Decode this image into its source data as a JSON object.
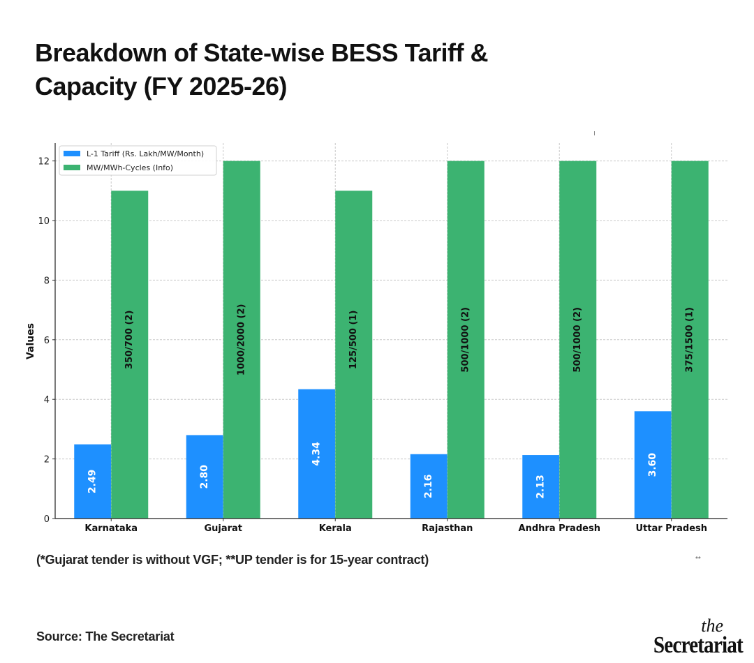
{
  "header": {
    "title": "Breakdown of State-wise BESS Tariff & Capacity (FY 2025-26)"
  },
  "footnote": "(*Gujarat tender is without VGF; **UP tender is for 15-year contract)",
  "stray_mark": "**",
  "source": "Source: The Secretariat",
  "logo": {
    "the": "the",
    "name": "Secretariat"
  },
  "colors": {
    "tariff": "#1E90FF",
    "capacity": "#3CB371",
    "grid": "#cccccc",
    "axis": "#333333"
  },
  "chart_data": {
    "type": "bar",
    "title": "",
    "xlabel": "",
    "ylabel": "Values",
    "ylim": [
      0,
      12.6
    ],
    "yticks": [
      0,
      2,
      4,
      6,
      8,
      10,
      12
    ],
    "grid": true,
    "legend_position": "top-left",
    "categories": [
      "Karnataka",
      "Gujarat",
      "Kerala",
      "Rajasthan",
      "Andhra Pradesh",
      "Uttar Pradesh"
    ],
    "series": [
      {
        "name": "L-1 Tariff (Rs. Lakh/MW/Month)",
        "color": "#1E90FF",
        "values": [
          2.49,
          2.8,
          4.34,
          2.16,
          2.13,
          3.6
        ],
        "labels": [
          "2.49",
          "2.80",
          "4.34",
          "2.16",
          "2.13",
          "3.60"
        ]
      },
      {
        "name": "MW/MWh-Cycles (Info)",
        "color": "#3CB371",
        "values": [
          11,
          12,
          11,
          12,
          12,
          12
        ],
        "labels": [
          "350/700 (2)",
          "1000/2000 (2)",
          "125/500 (1)",
          "500/1000 (2)",
          "500/1000 (2)",
          "375/1500 (1)"
        ]
      }
    ]
  }
}
